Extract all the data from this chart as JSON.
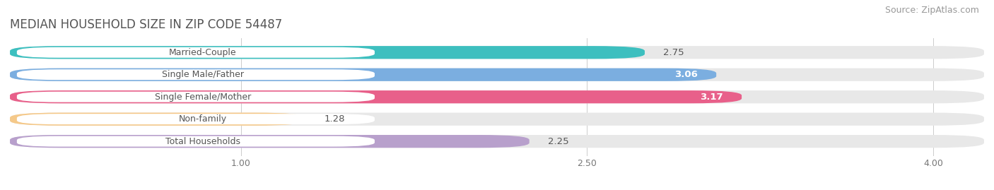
{
  "title": "MEDIAN HOUSEHOLD SIZE IN ZIP CODE 54487",
  "source": "Source: ZipAtlas.com",
  "categories": [
    "Married-Couple",
    "Single Male/Father",
    "Single Female/Mother",
    "Non-family",
    "Total Households"
  ],
  "values": [
    2.75,
    3.06,
    3.17,
    1.28,
    2.25
  ],
  "bar_colors": [
    "#3DBFBF",
    "#7BAEE0",
    "#E8608A",
    "#F5C98A",
    "#B8A0CC"
  ],
  "bar_bg_color": "#E8E8E8",
  "value_label_inside_color": [
    "#444444",
    "#ffffff",
    "#ffffff",
    "#555555",
    "#555555"
  ],
  "value_inside_threshold": 2.8,
  "xlim": [
    0,
    4.22
  ],
  "xticks": [
    1.0,
    2.5,
    4.0
  ],
  "xtick_labels": [
    "1.00",
    "2.50",
    "4.00"
  ],
  "title_fontsize": 12,
  "source_fontsize": 9,
  "bar_label_fontsize": 9.5,
  "category_fontsize": 9,
  "background_color": "#FFFFFF",
  "bar_height": 0.58,
  "bar_gap": 0.42,
  "pill_bg": "#FFFFFF",
  "pill_text_color": "#555555"
}
